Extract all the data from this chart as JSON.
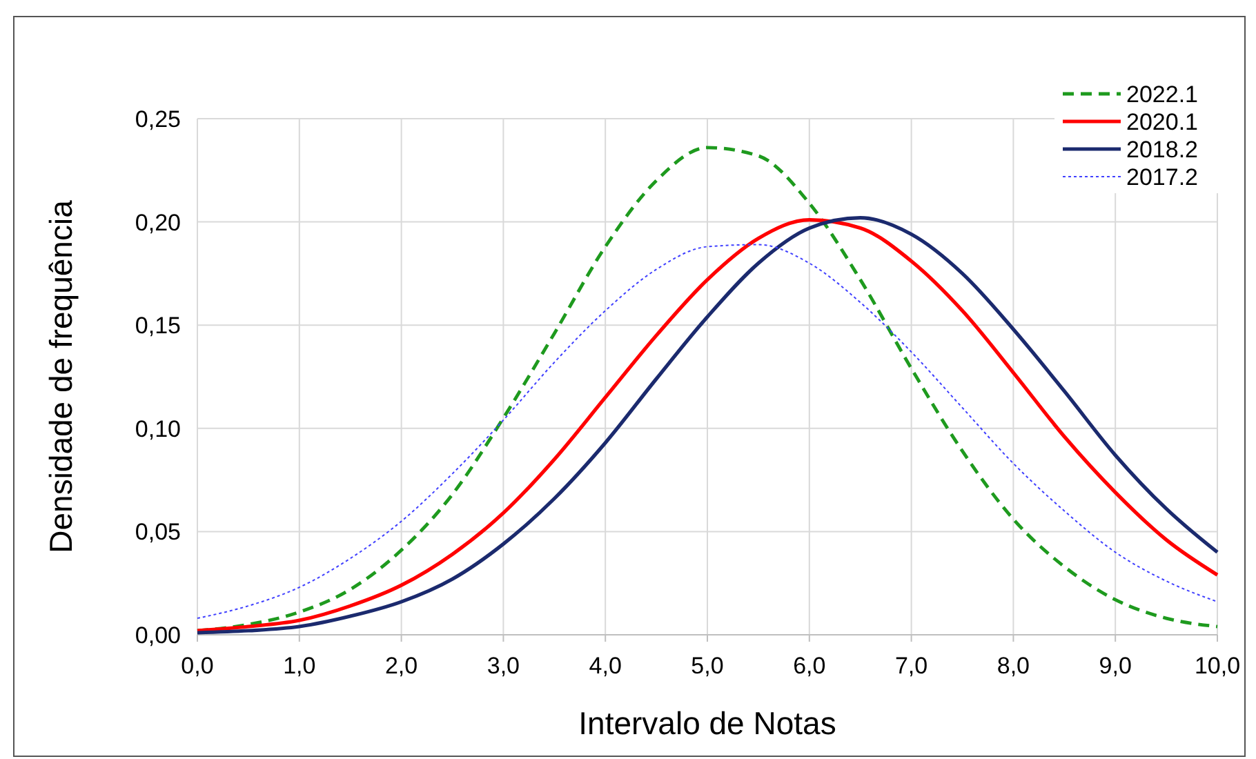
{
  "chart_data": {
    "type": "line",
    "xlabel": "Intervalo de Notas",
    "ylabel": "Densidade de frequência",
    "x": [
      0,
      0.5,
      1,
      1.5,
      2,
      2.5,
      3,
      3.5,
      4,
      4.5,
      5,
      5.5,
      6,
      6.5,
      7,
      7.5,
      8,
      8.5,
      9,
      9.5,
      10
    ],
    "series": [
      {
        "name": "2022.1",
        "color": "#1e9a1e",
        "line_style": "dashed",
        "values": [
          0.002,
          0.005,
          0.011,
          0.022,
          0.041,
          0.068,
          0.105,
          0.146,
          0.188,
          0.22,
          0.236,
          0.232,
          0.209,
          0.172,
          0.129,
          0.089,
          0.056,
          0.033,
          0.017,
          0.008,
          0.004
        ]
      },
      {
        "name": "2020.1",
        "color": "#ff0000",
        "line_style": "solid",
        "values": [
          0.002,
          0.004,
          0.007,
          0.014,
          0.024,
          0.039,
          0.059,
          0.085,
          0.115,
          0.145,
          0.172,
          0.192,
          0.201,
          0.197,
          0.181,
          0.157,
          0.127,
          0.096,
          0.069,
          0.046,
          0.029
        ]
      },
      {
        "name": "2018.2",
        "color": "#1b2a6e",
        "line_style": "solid",
        "values": [
          0.001,
          0.002,
          0.004,
          0.009,
          0.016,
          0.027,
          0.044,
          0.066,
          0.093,
          0.124,
          0.154,
          0.18,
          0.197,
          0.202,
          0.194,
          0.175,
          0.148,
          0.118,
          0.087,
          0.061,
          0.04
        ]
      },
      {
        "name": "2017.2",
        "color": "#4040ff",
        "line_style": "dotted",
        "values": [
          0.008,
          0.014,
          0.023,
          0.037,
          0.055,
          0.078,
          0.104,
          0.132,
          0.157,
          0.177,
          0.188,
          0.189,
          0.18,
          0.161,
          0.137,
          0.11,
          0.083,
          0.06,
          0.04,
          0.026,
          0.016
        ]
      }
    ],
    "xlim": [
      0,
      10
    ],
    "ylim": [
      0,
      0.25
    ],
    "xticks": [
      {
        "value": 0,
        "label": "0,0"
      },
      {
        "value": 1,
        "label": "1,0"
      },
      {
        "value": 2,
        "label": "2,0"
      },
      {
        "value": 3,
        "label": "3,0"
      },
      {
        "value": 4,
        "label": "4,0"
      },
      {
        "value": 5,
        "label": "5,0"
      },
      {
        "value": 6,
        "label": "6,0"
      },
      {
        "value": 7,
        "label": "7,0"
      },
      {
        "value": 8,
        "label": "8,0"
      },
      {
        "value": 9,
        "label": "9,0"
      },
      {
        "value": 10,
        "label": "10,0"
      }
    ],
    "yticks": [
      {
        "value": 0,
        "label": "0,00"
      },
      {
        "value": 0.05,
        "label": "0,05"
      },
      {
        "value": 0.1,
        "label": "0,10"
      },
      {
        "value": 0.15,
        "label": "0,15"
      },
      {
        "value": 0.2,
        "label": "0,20"
      },
      {
        "value": 0.25,
        "label": "0,25"
      }
    ],
    "grid": true,
    "legend": "top right",
    "marker": "none"
  }
}
